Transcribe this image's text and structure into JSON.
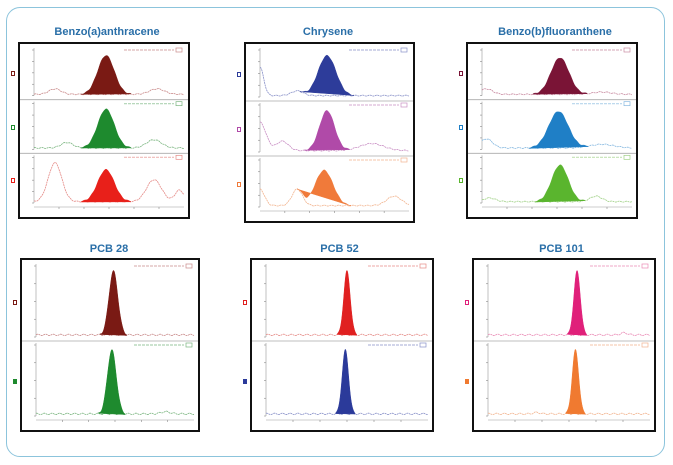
{
  "chart_data": [
    {
      "type": "line",
      "title": "Benzo(a)anthracene",
      "xlim": [
        0,
        100
      ],
      "traces": [
        {
          "color": "#7a1a14",
          "line": "#c98a8a",
          "peak": {
            "x": 48,
            "sigma": 5.5,
            "height": 0.85
          },
          "bumps": [
            [
              14,
              0.12,
              4
            ],
            [
              82,
              0.12,
              5
            ]
          ]
        },
        {
          "color": "#1e8a2e",
          "line": "#7ab57f",
          "peak": {
            "x": 48,
            "sigma": 5.5,
            "height": 0.85
          },
          "bumps": [
            [
              22,
              0.12,
              4
            ],
            [
              80,
              0.18,
              5
            ]
          ]
        },
        {
          "color": "#e8201a",
          "line": "#e58a86",
          "peak": {
            "x": 48,
            "sigma": 5.5,
            "height": 0.7
          },
          "bumps": [
            [
              14,
              0.85,
              4.5
            ],
            [
              80,
              0.48,
              5
            ],
            [
              97,
              0.25,
              3
            ]
          ]
        }
      ]
    },
    {
      "type": "line",
      "title": "Chrysene",
      "xlim": [
        0,
        100
      ],
      "traces": [
        {
          "color": "#2d3c9a",
          "line": "#8890c8",
          "peak": {
            "x": 45,
            "sigma": 6,
            "height": 0.85
          },
          "bumps": [
            [
              0,
              0.6,
              2.5
            ],
            [
              25,
              0.1,
              4
            ]
          ]
        },
        {
          "color": "#b04aa8",
          "line": "#c98fc4",
          "peak": {
            "x": 45,
            "sigma": 5,
            "height": 0.85
          },
          "bumps": [
            [
              0,
              0.6,
              4
            ],
            [
              15,
              0.2,
              4
            ],
            [
              75,
              0.15,
              8
            ]
          ]
        },
        {
          "color": "#f07a3a",
          "line": "#f2b48f",
          "peak": {
            "x": 43,
            "sigma": 6,
            "height": 0.75
          },
          "bumps": [
            [
              0,
              0.35,
              3
            ],
            [
              25,
              0.35,
              3.5
            ],
            [
              90,
              0.2,
              5
            ]
          ]
        }
      ]
    },
    {
      "type": "line",
      "title": "Benzo(b)fluoranthene",
      "xlim": [
        0,
        100
      ],
      "traces": [
        {
          "color": "#7a1436",
          "line": "#c88aa0",
          "peak": {
            "x": 52,
            "sigma": 6,
            "height": 0.8
          },
          "bumps": [
            [
              3,
              0.12,
              4
            ],
            [
              80,
              0.05,
              6
            ]
          ]
        },
        {
          "color": "#1f7fc6",
          "line": "#85b8e0",
          "peak": {
            "x": 51,
            "sigma": 6.5,
            "height": 0.8
          },
          "bumps": [
            [
              3,
              0.2,
              4
            ],
            [
              80,
              0.08,
              8
            ]
          ]
        },
        {
          "color": "#5ab52e",
          "line": "#9fd085",
          "peak": {
            "x": 52,
            "sigma": 5.5,
            "height": 0.8
          },
          "bumps": [
            [
              5,
              0.08,
              4
            ],
            [
              76,
              0.12,
              4
            ]
          ]
        }
      ]
    },
    {
      "type": "line",
      "title": "PCB 28",
      "xlim": [
        0,
        100
      ],
      "traces": [
        {
          "color": "#7a1a14",
          "line": "#c98a8a",
          "peak": {
            "x": 49,
            "sigma": 2.8,
            "height": 0.9
          },
          "bumps": []
        },
        {
          "color": "#1e8a2e",
          "line": "#7ab57f",
          "peak": {
            "x": 48,
            "sigma": 2.8,
            "height": 0.9
          },
          "bumps": [
            [
              82,
              0.03,
              3
            ]
          ]
        }
      ]
    },
    {
      "type": "line",
      "title": "PCB 52",
      "xlim": [
        0,
        100
      ],
      "traces": [
        {
          "color": "#e02020",
          "line": "#e58a86",
          "peak": {
            "x": 50,
            "sigma": 2,
            "height": 0.9
          },
          "bumps": []
        },
        {
          "color": "#2b3a9a",
          "line": "#8890c8",
          "peak": {
            "x": 49,
            "sigma": 2,
            "height": 0.9
          },
          "bumps": []
        }
      ]
    },
    {
      "type": "line",
      "title": "PCB 101",
      "xlim": [
        0,
        100
      ],
      "traces": [
        {
          "color": "#e0207a",
          "line": "#ea8ab5",
          "peak": {
            "x": 55,
            "sigma": 2,
            "height": 0.9
          },
          "bumps": [
            [
              84,
              0.03,
              2
            ]
          ]
        },
        {
          "color": "#f07a30",
          "line": "#f2b48f",
          "peak": {
            "x": 54,
            "sigma": 2,
            "height": 0.9
          },
          "bumps": [
            [
              30,
              0.02,
              2
            ]
          ]
        }
      ]
    }
  ]
}
